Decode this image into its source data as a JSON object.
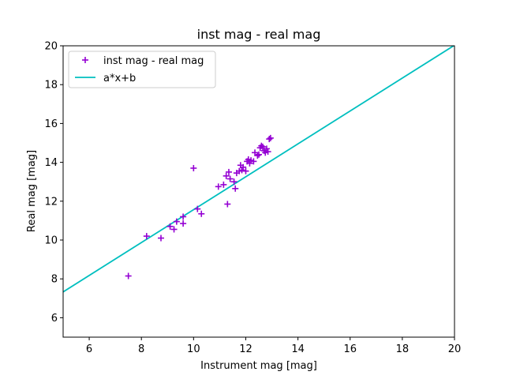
{
  "chart_data": {
    "type": "scatter",
    "title": "inst mag - real mag",
    "xlabel": "Instrument mag [mag]",
    "ylabel": "Real mag [mag]",
    "xlim": [
      5,
      20
    ],
    "ylim": [
      5,
      20
    ],
    "xticks": [
      6,
      8,
      10,
      12,
      14,
      16,
      18,
      20
    ],
    "yticks": [
      6,
      8,
      10,
      12,
      14,
      16,
      18,
      20
    ],
    "grid": false,
    "legend_position": "top-left",
    "series": [
      {
        "name": "inst mag - real mag",
        "kind": "scatter",
        "marker": "plus",
        "color": "#9400D3",
        "points": [
          [
            7.5,
            8.15
          ],
          [
            8.2,
            10.2
          ],
          [
            8.75,
            10.1
          ],
          [
            9.1,
            10.7
          ],
          [
            9.25,
            10.55
          ],
          [
            9.35,
            10.95
          ],
          [
            9.6,
            10.85
          ],
          [
            9.6,
            11.2
          ],
          [
            10.0,
            13.7
          ],
          [
            10.15,
            11.6
          ],
          [
            10.3,
            11.35
          ],
          [
            10.95,
            12.75
          ],
          [
            11.15,
            12.85
          ],
          [
            11.25,
            13.3
          ],
          [
            11.3,
            11.85
          ],
          [
            11.35,
            13.5
          ],
          [
            11.4,
            13.15
          ],
          [
            11.55,
            13.0
          ],
          [
            11.6,
            12.65
          ],
          [
            11.65,
            13.45
          ],
          [
            11.75,
            13.55
          ],
          [
            11.8,
            13.85
          ],
          [
            11.85,
            13.6
          ],
          [
            11.9,
            13.75
          ],
          [
            12.0,
            13.55
          ],
          [
            12.05,
            14.05
          ],
          [
            12.1,
            14.15
          ],
          [
            12.15,
            13.95
          ],
          [
            12.2,
            14.1
          ],
          [
            12.3,
            14.05
          ],
          [
            12.35,
            14.5
          ],
          [
            12.45,
            14.35
          ],
          [
            12.5,
            14.4
          ],
          [
            12.55,
            14.75
          ],
          [
            12.6,
            14.85
          ],
          [
            12.65,
            14.8
          ],
          [
            12.7,
            14.6
          ],
          [
            12.75,
            14.5
          ],
          [
            12.8,
            14.7
          ],
          [
            12.85,
            14.55
          ],
          [
            12.9,
            15.2
          ],
          [
            12.95,
            15.25
          ]
        ]
      },
      {
        "name": "a*x+b",
        "kind": "line",
        "color": "#00BFBF",
        "points": [
          [
            5,
            7.33
          ],
          [
            20,
            20.03
          ]
        ]
      }
    ]
  }
}
